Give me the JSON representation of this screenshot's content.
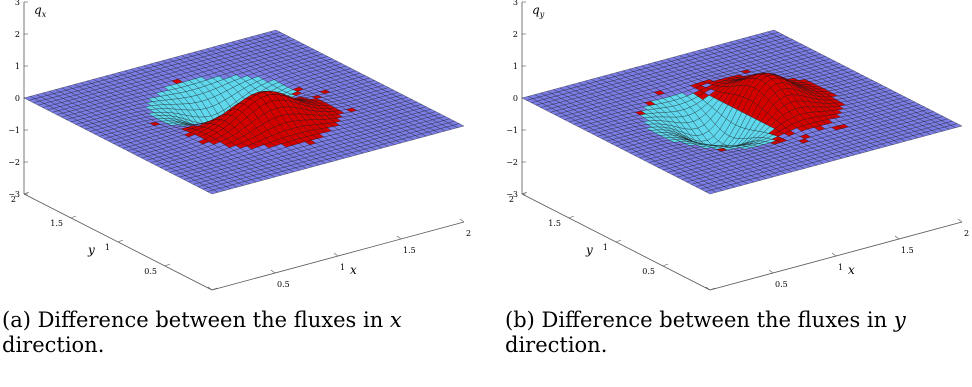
{
  "figures": [
    {
      "id": "a",
      "z_label": "q",
      "z_sub": "x",
      "x_label": "x",
      "y_label": "y",
      "z_ticks": [
        "3",
        "2",
        "1",
        "0",
        "−1",
        "−2",
        "−3"
      ],
      "x_ticks": [
        "0",
        "0.5",
        "1",
        "1.5",
        "2"
      ],
      "y_ticks": [
        "2",
        "1.5",
        "1",
        "0.5",
        "0"
      ],
      "caption_prefix": "(a) Difference between the fluxes in ",
      "caption_var": "x",
      "caption_line2": "direction.",
      "surface": {
        "peak_height": 2.6,
        "trough_depth": -2.8,
        "orientation": "x"
      }
    },
    {
      "id": "b",
      "z_label": "q",
      "z_sub": "y",
      "x_label": "x",
      "y_label": "y",
      "z_ticks": [
        "3",
        "2",
        "1",
        "0",
        "−1",
        "−2",
        "−3"
      ],
      "x_ticks": [
        "0",
        "0.5",
        "1",
        "1.5",
        "2"
      ],
      "y_ticks": [
        "2",
        "1.5",
        "1",
        "0.5",
        "0"
      ],
      "caption_prefix": "(b) Difference between the fluxes in ",
      "caption_var": "y",
      "caption_line2": "direction.",
      "surface": {
        "peak_height": 2.6,
        "trough_depth": -2.8,
        "orientation": "y"
      }
    }
  ],
  "colors": {
    "flat": "#7b7de6",
    "positive_low": "#d40000",
    "positive_high": "#d86dff",
    "negative": "#5fd8ee",
    "edge": "#111111",
    "axis": "#555555"
  }
}
